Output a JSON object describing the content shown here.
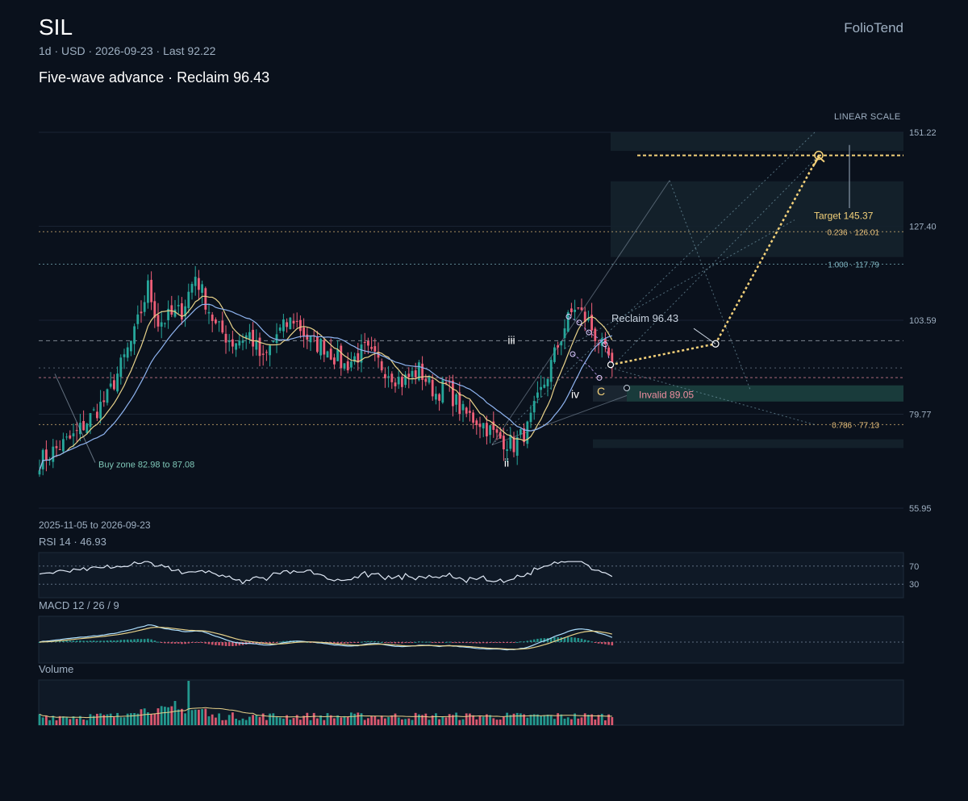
{
  "header": {
    "ticker": "SIL",
    "subtitle": "1d · USD · 2026-09-23 · Last 92.22",
    "headline": "Five-wave advance · Reclaim 96.43",
    "brand": "FolioTend"
  },
  "scale_label": "LINEAR SCALE",
  "date_range": "2025-11-05 to 2026-09-23",
  "panels": {
    "rsi": "RSI 14 · 46.93",
    "macd": "MACD 12 / 26 / 9",
    "volume": "Volume"
  },
  "colors": {
    "up": "#26a69a",
    "down": "#ef5f78",
    "fast_ma": "#e8d28a",
    "slow_ma": "#8fb4f0",
    "accent": "#f5d27a",
    "background": "#0a111c"
  },
  "chart_data": {
    "type": "candlestick",
    "last": 92.22,
    "y_ticks": [
      151.22,
      127.4,
      103.59,
      79.77,
      55.95
    ],
    "ylim": [
      55.95,
      151.22
    ],
    "levels": [
      {
        "label": "0.236 · 126.01",
        "value": 126.01,
        "color": "#e8c07a",
        "style": "dotted"
      },
      {
        "label": "1.000 · 117.79",
        "value": 117.79,
        "color": "#7fb6c2",
        "style": "dotted"
      },
      {
        "label": "0.786 · 77.13",
        "value": 77.13,
        "color": "#e8c07a",
        "style": "dotted"
      }
    ],
    "reclaim": {
      "label": "Reclaim 96.43",
      "value": 96.43
    },
    "target": {
      "label": "Target 145.37",
      "value": 145.37
    },
    "invalid": {
      "label": "Invalid 89.05",
      "value": 89.05
    },
    "buy_zone": {
      "label": "Buy zone 82.98 to 87.08",
      "low": 82.98,
      "high": 87.08
    },
    "waves": [
      {
        "label": "ii",
        "value": 71.5
      },
      {
        "label": "iii",
        "value": 101.0
      },
      {
        "label": "iv",
        "value": 87.0
      },
      {
        "label": "C",
        "value": 87.2
      }
    ],
    "rsi": {
      "value": 46.93,
      "levels": [
        70,
        30
      ]
    },
    "macd": {
      "fast": 12,
      "slow": 26,
      "signal": 9
    },
    "anchors": [
      [
        0,
        68
      ],
      [
        10,
        74
      ],
      [
        20,
        84
      ],
      [
        28,
        100
      ],
      [
        32,
        112
      ],
      [
        35,
        103
      ],
      [
        42,
        106
      ],
      [
        46,
        115
      ],
      [
        52,
        102
      ],
      [
        57,
        98
      ],
      [
        62,
        100
      ],
      [
        66,
        93
      ],
      [
        70,
        100
      ],
      [
        75,
        104
      ],
      [
        80,
        98
      ],
      [
        84,
        97
      ],
      [
        90,
        92
      ],
      [
        96,
        96
      ],
      [
        101,
        92
      ],
      [
        107,
        88
      ],
      [
        112,
        91
      ],
      [
        117,
        85
      ],
      [
        120,
        87
      ],
      [
        125,
        80
      ],
      [
        130,
        78
      ],
      [
        135,
        74
      ],
      [
        140,
        72
      ],
      [
        144,
        76
      ],
      [
        150,
        90
      ],
      [
        155,
        102
      ],
      [
        158,
        107
      ],
      [
        162,
        103
      ],
      [
        167,
        95
      ],
      [
        169,
        93
      ]
    ]
  }
}
